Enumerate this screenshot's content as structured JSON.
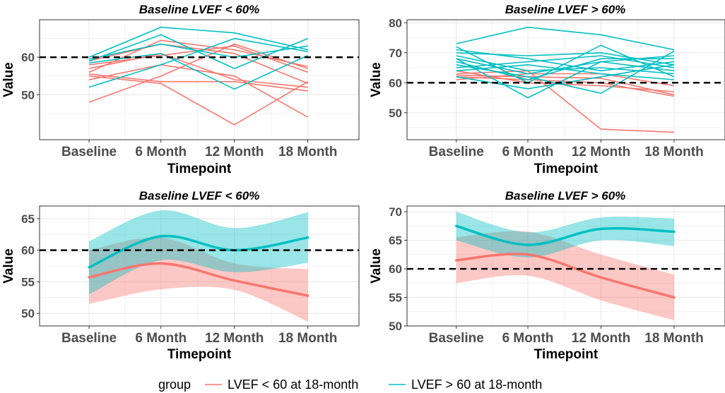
{
  "chart_data": [
    {
      "type": "line",
      "title": "Baseline LVEF < 60%",
      "xlabel": "Timepoint",
      "ylabel": "Value",
      "categories": [
        "Baseline",
        "6 Month",
        "12 Month",
        "18 Month"
      ],
      "ylim": [
        38,
        70
      ],
      "yticks": [
        50,
        60
      ],
      "reference_line": 60,
      "series": [
        {
          "group": "red",
          "values": [
            48,
            55,
            63.5,
            57
          ]
        },
        {
          "group": "red",
          "values": [
            55,
            53,
            42,
            53.5
          ]
        },
        {
          "group": "red",
          "values": [
            54,
            58,
            55,
            44
          ]
        },
        {
          "group": "red",
          "values": [
            56,
            64.5,
            62,
            57.5
          ]
        },
        {
          "group": "red",
          "values": [
            59,
            63.5,
            61,
            53
          ]
        },
        {
          "group": "red",
          "values": [
            57,
            61,
            54,
            52
          ]
        },
        {
          "group": "red",
          "values": [
            58,
            60.5,
            63,
            56
          ]
        },
        {
          "group": "red",
          "values": [
            55.5,
            53.5,
            53.5,
            51
          ]
        },
        {
          "group": "blue",
          "values": [
            52,
            58,
            65,
            61.5
          ]
        },
        {
          "group": "blue",
          "values": [
            58.5,
            61,
            51.5,
            60.5
          ]
        },
        {
          "group": "blue",
          "values": [
            60,
            68,
            66.5,
            62
          ]
        },
        {
          "group": "blue",
          "values": [
            59,
            66,
            57,
            65
          ]
        },
        {
          "group": "blue",
          "values": [
            59.5,
            63.5,
            60,
            63
          ]
        }
      ]
    },
    {
      "type": "line",
      "title": "Baseline LVEF > 60%",
      "xlabel": "Timepoint",
      "ylabel": "Value",
      "categories": [
        "Baseline",
        "6 Month",
        "12 Month",
        "18 Month"
      ],
      "ylim": [
        41,
        81
      ],
      "yticks": [
        50,
        60,
        70,
        80
      ],
      "reference_line": 60,
      "series": [
        {
          "group": "red",
          "values": [
            63,
            64,
            44.5,
            43.5
          ]
        },
        {
          "group": "red",
          "values": [
            62,
            61,
            60,
            55.5
          ]
        },
        {
          "group": "red",
          "values": [
            64,
            60,
            59,
            57
          ]
        },
        {
          "group": "red",
          "values": [
            62.5,
            62,
            61.5,
            56
          ]
        },
        {
          "group": "red",
          "values": [
            61,
            63,
            63,
            59
          ]
        },
        {
          "group": "blue",
          "values": [
            73,
            78.5,
            76,
            71
          ]
        },
        {
          "group": "blue",
          "values": [
            72,
            60,
            72.5,
            62
          ]
        },
        {
          "group": "blue",
          "values": [
            70,
            69,
            70,
            66
          ]
        },
        {
          "group": "blue",
          "values": [
            68,
            55,
            67,
            64
          ]
        },
        {
          "group": "blue",
          "values": [
            66,
            62,
            56.5,
            70.5
          ]
        },
        {
          "group": "blue",
          "values": [
            65,
            67,
            69,
            65
          ]
        },
        {
          "group": "blue",
          "values": [
            69,
            64,
            65,
            63
          ]
        },
        {
          "group": "blue",
          "values": [
            67,
            61,
            68,
            68
          ]
        },
        {
          "group": "blue",
          "values": [
            64,
            66,
            63,
            61
          ]
        },
        {
          "group": "blue",
          "values": [
            71,
            68,
            64,
            67
          ]
        },
        {
          "group": "blue",
          "values": [
            62,
            58,
            62,
            66
          ]
        },
        {
          "group": "blue",
          "values": [
            68,
            63,
            67,
            69
          ]
        }
      ]
    },
    {
      "type": "area",
      "title": "Baseline LVEF < 60%",
      "xlabel": "Timepoint",
      "ylabel": "Value",
      "categories": [
        "Baseline",
        "6 Month",
        "12 Month",
        "18 Month"
      ],
      "ylim": [
        48,
        67
      ],
      "yticks": [
        50,
        55,
        60,
        65
      ],
      "reference_line": 60,
      "series": [
        {
          "group": "red",
          "values": [
            55.7,
            57.9,
            55.2,
            52.8
          ],
          "lower": [
            51.5,
            53.8,
            53.7,
            48.7
          ],
          "upper": [
            60,
            62,
            57.9,
            57
          ]
        },
        {
          "group": "blue",
          "values": [
            57.3,
            62.2,
            60,
            62
          ],
          "lower": [
            53,
            58.4,
            56.5,
            58
          ],
          "upper": [
            61.4,
            66.3,
            63.5,
            66
          ]
        }
      ]
    },
    {
      "type": "area",
      "title": "Baseline LVEF > 60%",
      "xlabel": "Timepoint",
      "ylabel": "Value",
      "categories": [
        "Baseline",
        "6 Month",
        "12 Month",
        "18 Month"
      ],
      "ylim": [
        50,
        71
      ],
      "yticks": [
        50,
        55,
        60,
        65,
        70
      ],
      "reference_line": 60,
      "series": [
        {
          "group": "red",
          "values": [
            61.5,
            62.5,
            58.5,
            55
          ],
          "lower": [
            57.5,
            58.8,
            54.5,
            51
          ],
          "upper": [
            65.5,
            66.5,
            62.5,
            59
          ]
        },
        {
          "group": "blue",
          "values": [
            67.5,
            64.2,
            67,
            66.5
          ],
          "lower": [
            65,
            62,
            65,
            64
          ],
          "upper": [
            70,
            66.4,
            69,
            68.8
          ]
        }
      ]
    }
  ],
  "legend": {
    "title": "group",
    "items": [
      {
        "label": "LVEF < 60 at 18-month",
        "color": "#F8766D"
      },
      {
        "label": "LVEF > 60 at 18-month",
        "color": "#00BFC4"
      }
    ]
  },
  "colors": {
    "red": "#F8766D",
    "blue": "#00BFC4",
    "panel_border": "#333333",
    "grid": "#ebebeb"
  }
}
